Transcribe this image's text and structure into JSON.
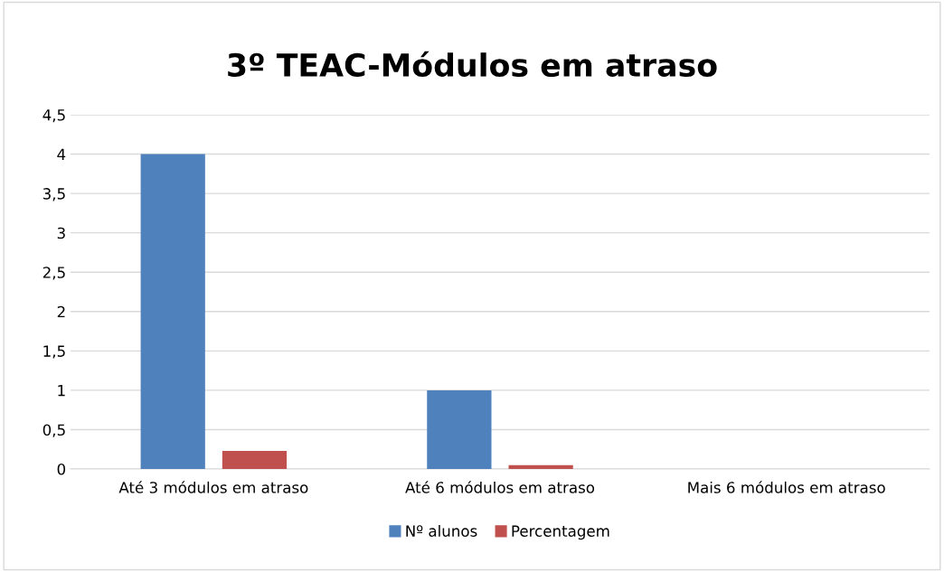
{
  "chart_data": {
    "type": "bar",
    "title": "3º TEAC-Módulos em atraso",
    "categories": [
      "Até 3 módulos em atraso",
      "Até 6 módulos em atraso",
      "Mais 6 módulos em atraso"
    ],
    "series": [
      {
        "name": "Nº alunos",
        "color": "#4f81bd",
        "values": [
          4,
          1,
          0
        ]
      },
      {
        "name": "Percentagem",
        "color": "#c0504d",
        "values": [
          0.23,
          0.05,
          0
        ]
      }
    ],
    "ylim": [
      0,
      4.5
    ],
    "yticks": [
      {
        "value": 0,
        "label": "0"
      },
      {
        "value": 0.5,
        "label": "0,5"
      },
      {
        "value": 1,
        "label": "1"
      },
      {
        "value": 1.5,
        "label": "1,5"
      },
      {
        "value": 2,
        "label": "2"
      },
      {
        "value": 2.5,
        "label": "2,5"
      },
      {
        "value": 3,
        "label": "3"
      },
      {
        "value": 3.5,
        "label": "3,5"
      },
      {
        "value": 4,
        "label": "4"
      },
      {
        "value": 4.5,
        "label": "4,5"
      }
    ],
    "grid": "y",
    "legend": "bottom"
  }
}
